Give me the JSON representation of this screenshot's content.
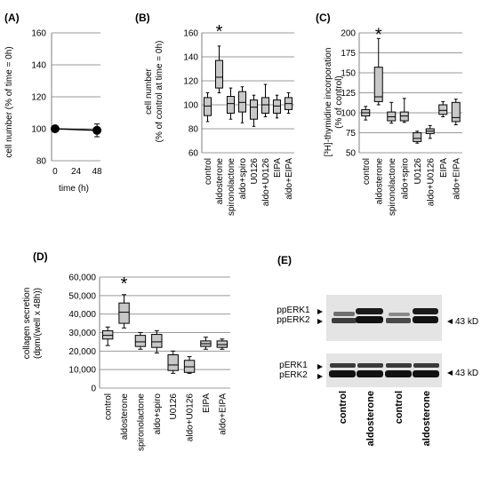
{
  "colors": {
    "box_fill": "#c8c8c8",
    "grid": "#999999",
    "axis": "#7f7f7f",
    "blot_bg": "#e4e4e4",
    "band": "#1a1a1a"
  },
  "chart_data": [
    {
      "panel": "(A)",
      "type": "line",
      "ylabel": "cell number (% of time = 0h)",
      "xlabel": "time (h)",
      "x": [
        0,
        48
      ],
      "values": [
        100,
        99
      ],
      "error": [
        1,
        4
      ],
      "xticks": [
        "0",
        "24",
        "48"
      ],
      "yticks": [
        "80",
        "100",
        "120",
        "140",
        "160"
      ],
      "ylim": [
        80,
        160
      ],
      "xlim": [
        -4,
        52
      ],
      "grid": true
    },
    {
      "panel": "(B)",
      "type": "box",
      "ylabel_lines": [
        "cell number",
        "(% of control at time = 0h)"
      ],
      "yticks": [
        "60",
        "80",
        "100",
        "120",
        "140",
        "160"
      ],
      "ylim": [
        60,
        160
      ],
      "grid": true,
      "significance_mark": "*",
      "significance_index": 1,
      "categories": [
        "control",
        "aldosterone",
        "spironolactone",
        "aldo+spiro",
        "U0126",
        "aldo+U0126",
        "EIPA",
        "aldo+EIPA"
      ],
      "boxes": [
        [
          86,
          91,
          99,
          106,
          110
        ],
        [
          110,
          114,
          123,
          137,
          149
        ],
        [
          88,
          93,
          101,
          107,
          114
        ],
        [
          85,
          94,
          102,
          111,
          115
        ],
        [
          82,
          88,
          98,
          104,
          108
        ],
        [
          90,
          93,
          100,
          106,
          117
        ],
        [
          89,
          93,
          99,
          104,
          108
        ],
        [
          93,
          96,
          101,
          106,
          110
        ]
      ]
    },
    {
      "panel": "(C)",
      "type": "box",
      "ylabel_lines": [
        "[³H]-thymidine incorporation",
        "(% of control)"
      ],
      "yticks": [
        "50",
        "75",
        "100",
        "125",
        "150",
        "175",
        "200"
      ],
      "ylim": [
        50,
        200
      ],
      "grid": true,
      "significance_mark": "*",
      "significance_index": 1,
      "categories": [
        "control",
        "aldosterone",
        "spironolactone",
        "aldo+spiro",
        "U0126",
        "aldo+U0126",
        "EIPA",
        "aldo+EIPA"
      ],
      "boxes": [
        [
          91,
          96,
          100,
          104,
          108
        ],
        [
          110,
          114,
          120,
          157,
          193
        ],
        [
          87,
          90,
          95,
          101,
          113
        ],
        [
          88,
          90,
          96,
          101,
          118
        ],
        [
          62,
          64,
          68,
          75,
          77
        ],
        [
          68,
          74,
          77,
          80,
          84
        ],
        [
          95,
          98,
          103,
          110,
          114
        ],
        [
          85,
          89,
          94,
          113,
          117
        ]
      ]
    },
    {
      "panel": "(D)",
      "type": "box",
      "ylabel_lines": [
        "collagen secretion",
        "(dpm/(well x 48h))"
      ],
      "yticks": [
        "0",
        "10,000",
        "20,000",
        "30,000",
        "40,000",
        "50,000",
        "60,000"
      ],
      "ylim": [
        0,
        60000
      ],
      "grid": true,
      "significance_mark": "*",
      "significance_index": 1,
      "categories": [
        "control",
        "aldosterone",
        "spironolactone",
        "aldo+spiro",
        "U0126",
        "aldo+U0126",
        "EIPA",
        "aldo+EIPA"
      ],
      "boxes": [
        [
          23000,
          26500,
          28500,
          31000,
          33000
        ],
        [
          32500,
          35000,
          41000,
          46000,
          50500
        ],
        [
          21000,
          22500,
          25000,
          28500,
          30000
        ],
        [
          19000,
          22000,
          25000,
          29000,
          31000
        ],
        [
          8000,
          9500,
          12500,
          18000,
          20000
        ],
        [
          8000,
          8500,
          11500,
          15000,
          17000
        ],
        [
          21000,
          22500,
          24000,
          25500,
          27500
        ],
        [
          21000,
          22000,
          23500,
          25500,
          26500
        ]
      ]
    }
  ],
  "blot": {
    "panel": "(E)",
    "top_labels": [
      "ppERK1",
      "ppERK2"
    ],
    "bottom_labels": [
      "pERK1",
      "pERK2"
    ],
    "marker": "43 kD",
    "lanes": [
      "control",
      "aldosterone",
      "control",
      "aldosterone"
    ]
  }
}
